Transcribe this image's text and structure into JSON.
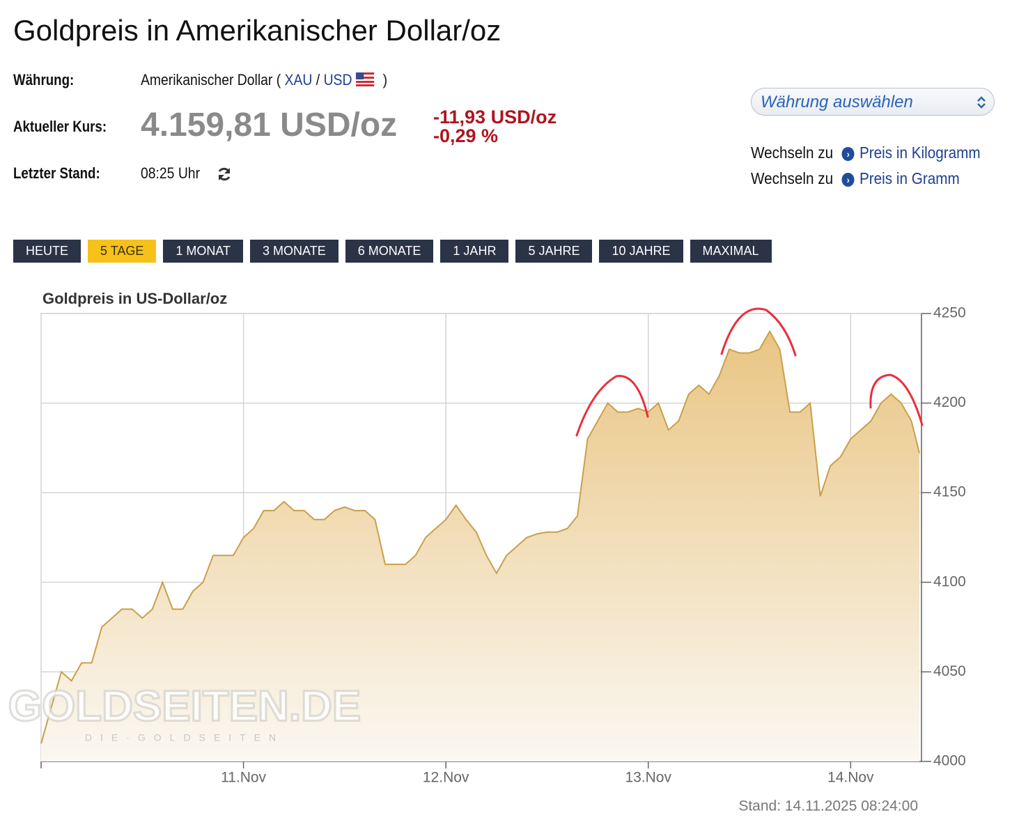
{
  "header": {
    "title": "Goldpreis in Amerikanischer Dollar/oz"
  },
  "info": {
    "currency_label": "Währung:",
    "currency_name": "Amerikanischer Dollar (",
    "xau": "XAU",
    "slash": "/",
    "usd": "USD",
    "close": ")",
    "price_label": "Aktueller Kurs:",
    "price": "4.159,81 USD/oz",
    "change_abs": "-11,93 USD/oz",
    "change_pct": "-0,29 %",
    "stand_label": "Letzter Stand:",
    "stand_time": "08:25 Uhr"
  },
  "sidebar": {
    "select": "Währung auswählen",
    "switch": [
      {
        "prefix": "Wechseln zu",
        "link": "Preis in Kilogramm"
      },
      {
        "prefix": "Wechseln zu",
        "link": "Preis in Gramm"
      }
    ]
  },
  "ranges": {
    "buttons": [
      "HEUTE",
      "5 TAGE",
      "1 MONAT",
      "3 MONATE",
      "6 MONATE",
      "1 JAHR",
      "5 JAHRE",
      "10 JAHRE",
      "MAXIMAL"
    ],
    "active": 1
  },
  "chart_data": {
    "type": "area",
    "title": "Goldpreis in US-Dollar/oz",
    "color": "#c9a04a",
    "grid": true,
    "watermark": "GOLDSEITEN.DE",
    "watermark_sub": "DIE·GOLDSEITEN",
    "footer": "Stand: 14.11.2025 08:24:00",
    "x": [
      10.0,
      10.05,
      10.1,
      10.15,
      10.2,
      10.25,
      10.3,
      10.35,
      10.4,
      10.45,
      10.5,
      10.55,
      10.6,
      10.65,
      10.7,
      10.75,
      10.8,
      10.85,
      10.9,
      10.95,
      11.0,
      11.05,
      11.1,
      11.15,
      11.2,
      11.25,
      11.3,
      11.35,
      11.4,
      11.45,
      11.5,
      11.55,
      11.6,
      11.65,
      11.7,
      11.75,
      11.8,
      11.85,
      11.9,
      11.95,
      12.0,
      12.05,
      12.1,
      12.15,
      12.2,
      12.25,
      12.3,
      12.35,
      12.4,
      12.45,
      12.5,
      12.55,
      12.6,
      12.65,
      12.7,
      12.75,
      12.8,
      12.85,
      12.9,
      12.95,
      13.0,
      13.05,
      13.1,
      13.15,
      13.2,
      13.25,
      13.3,
      13.35,
      13.4,
      13.45,
      13.5,
      13.55,
      13.6,
      13.65,
      13.7,
      13.75,
      13.8,
      13.85,
      13.9,
      13.95,
      14.0,
      14.05,
      14.1,
      14.15,
      14.2,
      14.25,
      14.3,
      14.34
    ],
    "values": [
      4010,
      4030,
      4050,
      4045,
      4055,
      4055,
      4075,
      4080,
      4085,
      4085,
      4080,
      4085,
      4100,
      4085,
      4085,
      4095,
      4100,
      4115,
      4115,
      4115,
      4125,
      4130,
      4140,
      4140,
      4145,
      4140,
      4140,
      4135,
      4135,
      4140,
      4142,
      4140,
      4140,
      4135,
      4110,
      4110,
      4110,
      4115,
      4125,
      4130,
      4135,
      4143,
      4135,
      4128,
      4115,
      4105,
      4115,
      4120,
      4125,
      4127,
      4128,
      4128,
      4130,
      4137,
      4180,
      4190,
      4200,
      4195,
      4195,
      4197,
      4195,
      4200,
      4185,
      4190,
      4205,
      4210,
      4205,
      4215,
      4230,
      4228,
      4228,
      4230,
      4240,
      4230,
      4195,
      4195,
      4200,
      4148,
      4165,
      4170,
      4180,
      4185,
      4190,
      4200,
      4205,
      4200,
      4190,
      4172
    ],
    "xlim": [
      10,
      14.35
    ],
    "xticks": [
      {
        "value": 11,
        "label": "11.Nov"
      },
      {
        "value": 12,
        "label": "12.Nov"
      },
      {
        "value": 13,
        "label": "13.Nov"
      },
      {
        "value": 14,
        "label": "14.Nov"
      }
    ],
    "ylim": [
      4000,
      4250
    ],
    "yticks": [
      4000,
      4050,
      4100,
      4150,
      4200,
      4250
    ]
  }
}
